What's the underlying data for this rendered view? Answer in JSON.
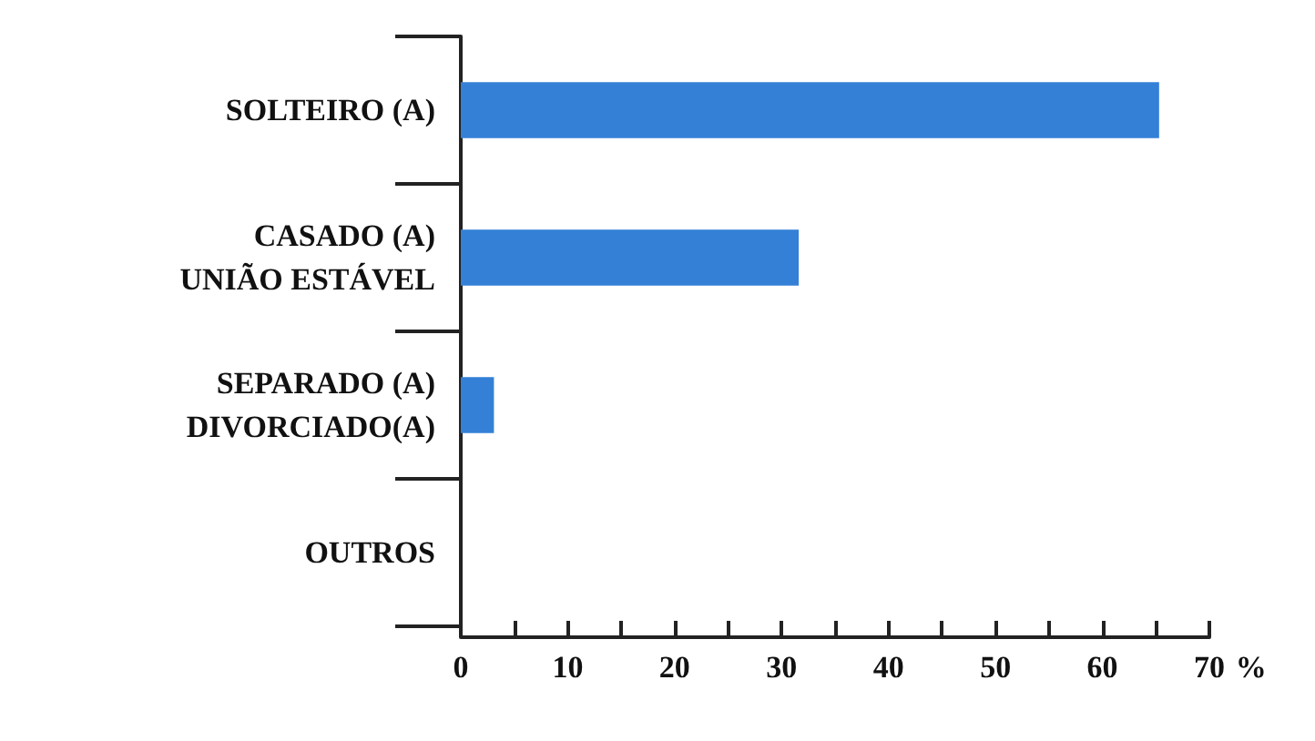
{
  "chart_data": {
    "type": "bar",
    "orientation": "horizontal",
    "categories": [
      "SOLTEIRO (A)",
      "CASADO (A)\nUNIÃO ESTÁVEL",
      "SEPARADO (A)\nDIVORCIADO(A)",
      "OUTROS"
    ],
    "values": [
      65.3,
      31.6,
      3.1,
      0
    ],
    "color": "#3380d6",
    "xlabel": "%",
    "xlim": [
      0,
      70
    ],
    "xticks": [
      0,
      {
        "value": 5,
        "label": null
      },
      10,
      {
        "value": 15,
        "label": null
      },
      20,
      {
        "value": 25,
        "label": null
      },
      30,
      {
        "value": 35,
        "label": null
      },
      40,
      {
        "value": 45,
        "label": null
      },
      50,
      {
        "value": 55,
        "label": null
      },
      60,
      {
        "value": 65,
        "label": null
      },
      70
    ],
    "grid": false
  }
}
